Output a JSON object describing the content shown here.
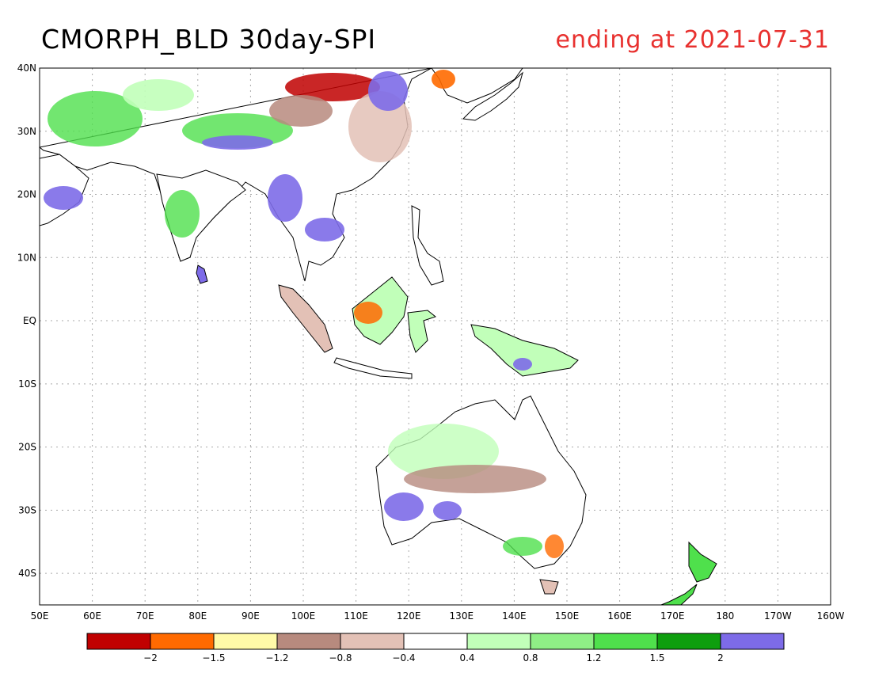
{
  "title": "CMORPH_BLD 30day-SPI",
  "subtitle": "ending at 2021-07-31",
  "colors": {
    "title": "#000000",
    "subtitle": "#e8312f"
  },
  "map": {
    "lon_range": [
      50,
      200
    ],
    "lat_range": [
      -45,
      40
    ],
    "lon_ticks": [
      {
        "value": 50,
        "label": "50E"
      },
      {
        "value": 60,
        "label": "60E"
      },
      {
        "value": 70,
        "label": "70E"
      },
      {
        "value": 80,
        "label": "80E"
      },
      {
        "value": 90,
        "label": "90E"
      },
      {
        "value": 100,
        "label": "100E"
      },
      {
        "value": 110,
        "label": "110E"
      },
      {
        "value": 120,
        "label": "120E"
      },
      {
        "value": 130,
        "label": "130E"
      },
      {
        "value": 140,
        "label": "140E"
      },
      {
        "value": 150,
        "label": "150E"
      },
      {
        "value": 160,
        "label": "160E"
      },
      {
        "value": 170,
        "label": "170E"
      },
      {
        "value": 180,
        "label": "180"
      },
      {
        "value": 190,
        "label": "170W"
      },
      {
        "value": 200,
        "label": "160W"
      }
    ],
    "lat_ticks": [
      {
        "value": 40,
        "label": "40N"
      },
      {
        "value": 30,
        "label": "30N"
      },
      {
        "value": 20,
        "label": "20N"
      },
      {
        "value": 10,
        "label": "10N"
      },
      {
        "value": 0,
        "label": "EQ"
      },
      {
        "value": -10,
        "label": "10S"
      },
      {
        "value": -20,
        "label": "20S"
      },
      {
        "value": -30,
        "label": "30S"
      },
      {
        "value": -40,
        "label": "40S"
      }
    ],
    "grid": true
  },
  "colorbar": {
    "colors": [
      "#c00000",
      "#ff6a00",
      "#fffaa8",
      "#b78a7e",
      "#e3c1b6",
      "#ffffff",
      "#c1ffb9",
      "#8fef86",
      "#4fe04c",
      "#0e9e0e",
      "#7d6be8"
    ],
    "labels": [
      "-2",
      "-1.5",
      "-1.2",
      "-0.8",
      "-0.4",
      "0.4",
      "0.8",
      "1.2",
      "1.5",
      "2"
    ]
  }
}
